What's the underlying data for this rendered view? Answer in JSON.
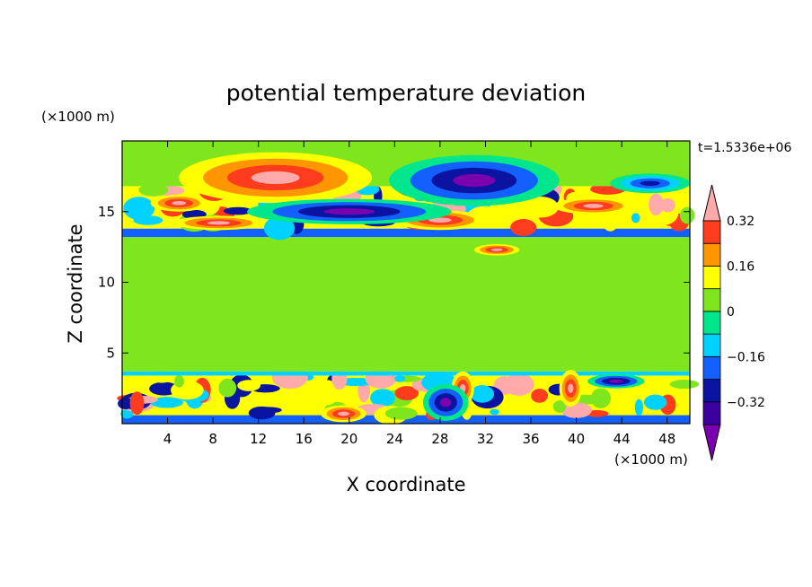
{
  "chart_data": {
    "type": "heatmap",
    "title": "potential temperature deviation",
    "xlabel": "X coordinate",
    "ylabel": "Z coordinate",
    "x_unit": "(×1000 m)",
    "y_unit": "(×1000 m)",
    "time_label": "t=1.5336e+06",
    "xlim": [
      0,
      50
    ],
    "ylim": [
      0,
      20
    ],
    "x_ticks": [
      4,
      8,
      12,
      16,
      20,
      24,
      28,
      32,
      36,
      40,
      44,
      48
    ],
    "y_ticks": [
      5,
      10,
      15
    ],
    "colorbar": {
      "levels": [
        -0.4,
        -0.32,
        -0.24,
        -0.16,
        -0.08,
        0,
        0.08,
        0.16,
        0.24,
        0.32,
        0.4
      ],
      "tick_values": [
        -0.32,
        -0.16,
        0,
        0.16,
        0.32
      ],
      "tick_labels": [
        "−0.32",
        "−0.16",
        "0",
        "0.16",
        "0.32"
      ],
      "colors": [
        "#7a00b0",
        "#3c00a0",
        "#0a14a0",
        "#1460ff",
        "#00d2ff",
        "#00e68c",
        "#7fe61e",
        "#ffff00",
        "#ff9600",
        "#ff3c1e",
        "#ffaaaa"
      ],
      "extend": "both"
    },
    "bands": [
      {
        "z": [
          0.0,
          0.6
        ],
        "value": -0.2
      },
      {
        "z": [
          0.6,
          3.4
        ],
        "value": 0.1,
        "mixed": true
      },
      {
        "z": [
          3.4,
          3.7
        ],
        "value": -0.1
      },
      {
        "z": [
          3.7,
          13.2
        ],
        "value": 0.03
      },
      {
        "z": [
          13.2,
          13.8
        ],
        "value": -0.2
      },
      {
        "z": [
          13.8,
          16.8
        ],
        "value": 0.1,
        "mixed": true
      },
      {
        "z": [
          16.8,
          20.0
        ],
        "value": 0.05
      }
    ],
    "features": [
      {
        "x": 13.5,
        "z": 17.4,
        "rx": 8.5,
        "rz": 1.8,
        "value": 0.4
      },
      {
        "x": 5.0,
        "z": 15.6,
        "rx": 2.5,
        "rz": 0.6,
        "value": 0.4
      },
      {
        "x": 8.5,
        "z": 14.2,
        "rx": 4.0,
        "rz": 0.5,
        "value": 0.4
      },
      {
        "x": 28.0,
        "z": 14.4,
        "rx": 4.0,
        "rz": 0.7,
        "value": 0.4
      },
      {
        "x": 33.0,
        "z": 12.3,
        "rx": 2.0,
        "rz": 0.4,
        "value": 0.4
      },
      {
        "x": 41.5,
        "z": 15.4,
        "rx": 3.5,
        "rz": 0.6,
        "value": 0.4
      },
      {
        "x": 31.0,
        "z": 17.2,
        "rx": 7.5,
        "rz": 1.8,
        "value": -0.4
      },
      {
        "x": 20.0,
        "z": 15.0,
        "rx": 9.0,
        "rz": 0.9,
        "value": -0.4
      },
      {
        "x": 46.5,
        "z": 17.0,
        "rx": 3.5,
        "rz": 0.7,
        "value": -0.3
      },
      {
        "x": 19.5,
        "z": 0.7,
        "rx": 2.0,
        "rz": 0.6,
        "value": 0.4
      },
      {
        "x": 30.0,
        "z": 2.5,
        "rx": 1.0,
        "rz": 1.2,
        "value": 0.4
      },
      {
        "x": 39.5,
        "z": 2.5,
        "rx": 1.0,
        "rz": 1.3,
        "value": 0.4
      },
      {
        "x": 43.5,
        "z": 3.0,
        "rx": 2.5,
        "rz": 0.5,
        "value": -0.4
      },
      {
        "x": 28.5,
        "z": 1.5,
        "rx": 2.0,
        "rz": 1.3,
        "value": -0.4
      }
    ]
  }
}
